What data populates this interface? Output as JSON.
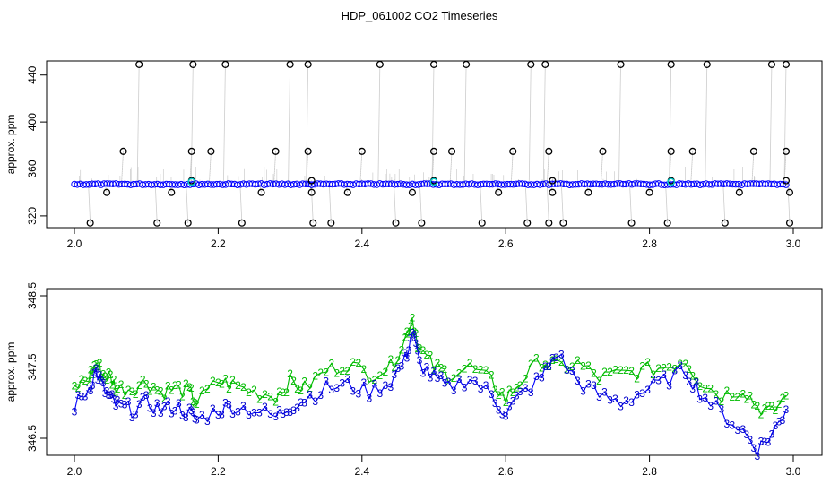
{
  "title": "HDP_061002  CO2 Timeseries",
  "colors": {
    "frame": "#000000",
    "spike_line": "#9a9a9a",
    "flagged_marker": "#000000",
    "flat_marker": "#0000ff",
    "cyan_marker": "#00cccc",
    "series_2": "#00bb00",
    "series_3": "#0000cc",
    "blue_line": "#0000ff"
  },
  "chart_data": [
    {
      "type": "scatter",
      "ylabel": "approx. ppm",
      "xlim": [
        2.0,
        3.0
      ],
      "ylim": [
        310,
        452
      ],
      "x_ticks": [
        2.0,
        2.2,
        2.4,
        2.6,
        2.8,
        3.0
      ],
      "x_tick_labels": [
        "2.0",
        "2.2",
        "2.4",
        "2.6",
        "2.8",
        "3.0"
      ],
      "y_ticks": [
        320,
        360,
        400,
        440
      ],
      "y_tick_labels": [
        "320",
        "360",
        "400",
        "440"
      ],
      "baseline_level": 347,
      "baseline_x_range": [
        2.0,
        2.99
      ],
      "flagged_points_high": [
        {
          "x": 2.09,
          "y": 449
        },
        {
          "x": 2.165,
          "y": 449
        },
        {
          "x": 2.21,
          "y": 449
        },
        {
          "x": 2.3,
          "y": 449
        },
        {
          "x": 2.325,
          "y": 449
        },
        {
          "x": 2.425,
          "y": 449
        },
        {
          "x": 2.5,
          "y": 449
        },
        {
          "x": 2.545,
          "y": 449
        },
        {
          "x": 2.635,
          "y": 449
        },
        {
          "x": 2.655,
          "y": 449
        },
        {
          "x": 2.76,
          "y": 449
        },
        {
          "x": 2.83,
          "y": 449
        },
        {
          "x": 2.88,
          "y": 449
        },
        {
          "x": 2.97,
          "y": 449
        },
        {
          "x": 2.99,
          "y": 449
        }
      ],
      "flagged_points_mid": [
        {
          "x": 2.068,
          "y": 375
        },
        {
          "x": 2.163,
          "y": 375
        },
        {
          "x": 2.19,
          "y": 375
        },
        {
          "x": 2.28,
          "y": 375
        },
        {
          "x": 2.325,
          "y": 375
        },
        {
          "x": 2.4,
          "y": 375
        },
        {
          "x": 2.5,
          "y": 375
        },
        {
          "x": 2.525,
          "y": 375
        },
        {
          "x": 2.61,
          "y": 375
        },
        {
          "x": 2.66,
          "y": 375
        },
        {
          "x": 2.735,
          "y": 375
        },
        {
          "x": 2.83,
          "y": 375
        },
        {
          "x": 2.86,
          "y": 375
        },
        {
          "x": 2.945,
          "y": 375
        },
        {
          "x": 2.99,
          "y": 375
        }
      ],
      "flagged_points_near": [
        {
          "x": 2.163,
          "y": 350
        },
        {
          "x": 2.33,
          "y": 350
        },
        {
          "x": 2.5,
          "y": 350
        },
        {
          "x": 2.665,
          "y": 350
        },
        {
          "x": 2.83,
          "y": 350
        },
        {
          "x": 2.99,
          "y": 350
        }
      ],
      "flagged_points_below": [
        {
          "x": 2.045,
          "y": 340
        },
        {
          "x": 2.135,
          "y": 340
        },
        {
          "x": 2.26,
          "y": 340
        },
        {
          "x": 2.33,
          "y": 340
        },
        {
          "x": 2.38,
          "y": 340
        },
        {
          "x": 2.47,
          "y": 340
        },
        {
          "x": 2.59,
          "y": 340
        },
        {
          "x": 2.665,
          "y": 340
        },
        {
          "x": 2.715,
          "y": 340
        },
        {
          "x": 2.8,
          "y": 340
        },
        {
          "x": 2.925,
          "y": 340
        },
        {
          "x": 2.995,
          "y": 340
        }
      ],
      "flagged_points_low": [
        {
          "x": 2.022,
          "y": 314
        },
        {
          "x": 2.115,
          "y": 314
        },
        {
          "x": 2.158,
          "y": 314
        },
        {
          "x": 2.233,
          "y": 314
        },
        {
          "x": 2.332,
          "y": 314
        },
        {
          "x": 2.357,
          "y": 314
        },
        {
          "x": 2.447,
          "y": 314
        },
        {
          "x": 2.483,
          "y": 314
        },
        {
          "x": 2.567,
          "y": 314
        },
        {
          "x": 2.63,
          "y": 314
        },
        {
          "x": 2.66,
          "y": 314
        },
        {
          "x": 2.68,
          "y": 314
        },
        {
          "x": 2.775,
          "y": 314
        },
        {
          "x": 2.825,
          "y": 314
        },
        {
          "x": 2.905,
          "y": 314
        },
        {
          "x": 2.995,
          "y": 314
        }
      ],
      "cyan_points": [
        {
          "x": 2.163,
          "y": 349
        },
        {
          "x": 2.5,
          "y": 349
        },
        {
          "x": 2.83,
          "y": 349
        }
      ]
    },
    {
      "type": "line",
      "ylabel": "approx. ppm",
      "xlim": [
        2.0,
        3.0
      ],
      "ylim": [
        346.3,
        348.55
      ],
      "x_ticks": [
        2.0,
        2.2,
        2.4,
        2.6,
        2.8,
        3.0
      ],
      "x_tick_labels": [
        "2.0",
        "2.2",
        "2.4",
        "2.6",
        "2.8",
        "3.0"
      ],
      "y_ticks": [
        346.5,
        347.5,
        348.5
      ],
      "y_tick_labels": [
        "346.5",
        "347.5",
        "348.5"
      ],
      "series": [
        {
          "marker": "2",
          "x": [
            2.0,
            2.02,
            2.03,
            2.04,
            2.05,
            2.06,
            2.08,
            2.1,
            2.12,
            2.14,
            2.16,
            2.17,
            2.2,
            2.22,
            2.25,
            2.28,
            2.3,
            2.32,
            2.35,
            2.38,
            2.41,
            2.44,
            2.46,
            2.47,
            2.48,
            2.5,
            2.52,
            2.55,
            2.58,
            2.6,
            2.62,
            2.65,
            2.67,
            2.7,
            2.73,
            2.76,
            2.79,
            2.82,
            2.85,
            2.87,
            2.9,
            2.93,
            2.95,
            2.97,
            2.99
          ],
          "y": [
            347.2,
            347.35,
            347.55,
            347.4,
            347.35,
            347.2,
            347.2,
            347.3,
            347.15,
            347.2,
            347.15,
            347.0,
            347.3,
            347.25,
            347.15,
            347.1,
            347.3,
            347.2,
            347.45,
            347.55,
            347.4,
            347.5,
            347.9,
            348.2,
            347.75,
            347.5,
            347.4,
            347.5,
            347.3,
            347.05,
            347.3,
            347.6,
            347.5,
            347.55,
            347.35,
            347.4,
            347.45,
            347.5,
            347.6,
            347.3,
            347.1,
            347.2,
            346.95,
            346.85,
            347.1
          ]
        },
        {
          "marker": "3",
          "x": [
            2.0,
            2.02,
            2.03,
            2.04,
            2.05,
            2.06,
            2.08,
            2.1,
            2.12,
            2.14,
            2.16,
            2.17,
            2.2,
            2.22,
            2.25,
            2.28,
            2.3,
            2.32,
            2.35,
            2.38,
            2.41,
            2.44,
            2.46,
            2.47,
            2.48,
            2.5,
            2.52,
            2.55,
            2.58,
            2.6,
            2.62,
            2.65,
            2.67,
            2.7,
            2.73,
            2.76,
            2.79,
            2.82,
            2.85,
            2.87,
            2.9,
            2.93,
            2.95,
            2.97,
            2.99
          ],
          "y": [
            346.95,
            347.2,
            347.45,
            347.2,
            347.05,
            346.95,
            346.9,
            347.0,
            346.9,
            346.95,
            346.85,
            346.75,
            346.9,
            346.95,
            346.9,
            346.8,
            346.95,
            347.05,
            347.2,
            347.25,
            347.15,
            347.3,
            347.6,
            348.0,
            347.55,
            347.35,
            347.2,
            347.35,
            347.1,
            346.85,
            347.1,
            347.35,
            347.7,
            347.3,
            347.1,
            347.0,
            347.15,
            347.3,
            347.45,
            347.15,
            346.85,
            346.6,
            346.35,
            346.55,
            346.9
          ]
        }
      ]
    }
  ]
}
